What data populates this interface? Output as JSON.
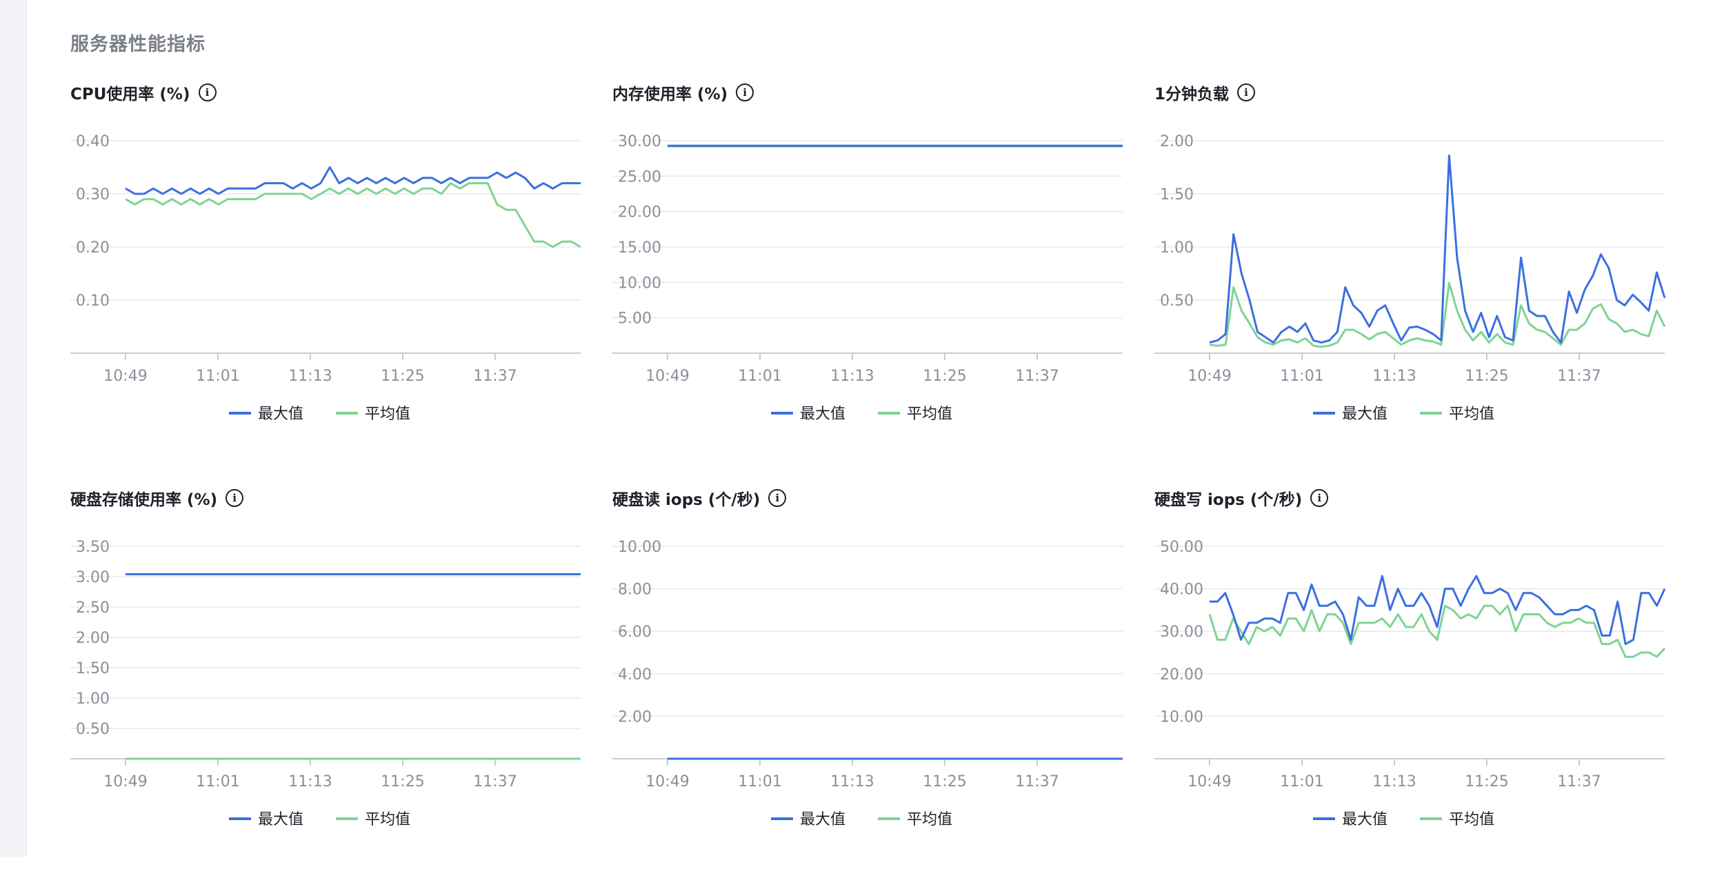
{
  "section_title": "服务器性能指标",
  "colors": {
    "max": "#3b6fe0",
    "avg": "#7ed491"
  },
  "chart_data": [
    {
      "type": "line",
      "title": "CPU使用率 (%)",
      "x_ticks": [
        "10:49",
        "11:01",
        "11:13",
        "11:25",
        "11:37"
      ],
      "y_ticks": [
        "0.40",
        "0.30",
        "0.20",
        "0.10"
      ],
      "ylim": [
        0,
        0.4
      ],
      "legend": [
        "最大值",
        "平均值"
      ],
      "series": [
        {
          "name": "最大值",
          "values": [
            0.31,
            0.3,
            0.3,
            0.31,
            0.3,
            0.31,
            0.3,
            0.31,
            0.3,
            0.31,
            0.3,
            0.31,
            0.31,
            0.31,
            0.31,
            0.32,
            0.32,
            0.32,
            0.31,
            0.32,
            0.31,
            0.32,
            0.35,
            0.32,
            0.33,
            0.32,
            0.33,
            0.32,
            0.33,
            0.32,
            0.33,
            0.32,
            0.33,
            0.33,
            0.32,
            0.33,
            0.32,
            0.33,
            0.33,
            0.33,
            0.34,
            0.33,
            0.34,
            0.33,
            0.31,
            0.32,
            0.31,
            0.32,
            0.32,
            0.32
          ]
        },
        {
          "name": "平均值",
          "values": [
            0.29,
            0.28,
            0.29,
            0.29,
            0.28,
            0.29,
            0.28,
            0.29,
            0.28,
            0.29,
            0.28,
            0.29,
            0.29,
            0.29,
            0.29,
            0.3,
            0.3,
            0.3,
            0.3,
            0.3,
            0.29,
            0.3,
            0.31,
            0.3,
            0.31,
            0.3,
            0.31,
            0.3,
            0.31,
            0.3,
            0.31,
            0.3,
            0.31,
            0.31,
            0.3,
            0.32,
            0.31,
            0.32,
            0.32,
            0.32,
            0.28,
            0.27,
            0.27,
            0.24,
            0.21,
            0.21,
            0.2,
            0.21,
            0.21,
            0.2
          ]
        }
      ]
    },
    {
      "type": "line",
      "title": "内存使用率 (%)",
      "x_ticks": [
        "10:49",
        "11:01",
        "11:13",
        "11:25",
        "11:37"
      ],
      "y_ticks": [
        "30.00",
        "25.00",
        "20.00",
        "15.00",
        "10.00",
        "5.00"
      ],
      "ylim": [
        0,
        30
      ],
      "legend": [
        "最大值",
        "平均值"
      ],
      "series": [
        {
          "name": "最大值",
          "values": [
            29.3,
            29.3,
            29.3,
            29.3,
            29.3,
            29.3,
            29.3,
            29.3,
            29.3,
            29.3,
            29.3,
            29.3,
            29.3,
            29.3,
            29.3,
            29.3,
            29.3,
            29.3,
            29.3,
            29.3,
            29.3,
            29.3,
            29.3,
            29.3,
            29.3,
            29.3,
            29.3,
            29.3,
            29.3,
            29.3,
            29.3,
            29.3,
            29.3,
            29.3,
            29.3,
            29.3,
            29.3,
            29.3,
            29.3,
            29.3,
            29.3,
            29.3,
            29.3,
            29.3,
            29.3,
            29.3,
            29.3,
            29.3,
            29.3,
            29.3
          ]
        },
        {
          "name": "平均值",
          "values": [
            29.2,
            29.2,
            29.2,
            29.2,
            29.2,
            29.2,
            29.2,
            29.2,
            29.2,
            29.2,
            29.2,
            29.2,
            29.2,
            29.2,
            29.2,
            29.2,
            29.2,
            29.2,
            29.2,
            29.2,
            29.2,
            29.2,
            29.2,
            29.2,
            29.2,
            29.2,
            29.2,
            29.2,
            29.2,
            29.2,
            29.2,
            29.2,
            29.2,
            29.2,
            29.2,
            29.2,
            29.2,
            29.2,
            29.2,
            29.2,
            29.2,
            29.2,
            29.2,
            29.2,
            29.2,
            29.2,
            29.2,
            29.2,
            29.2,
            29.2
          ]
        }
      ]
    },
    {
      "type": "line",
      "title": "1分钟负载",
      "x_ticks": [
        "10:49",
        "11:01",
        "11:13",
        "11:25",
        "11:37"
      ],
      "y_ticks": [
        "2.00",
        "1.50",
        "1.00",
        "0.50"
      ],
      "ylim": [
        0,
        2
      ],
      "legend": [
        "最大值",
        "平均值"
      ],
      "series": [
        {
          "name": "最大值",
          "values": [
            0.1,
            0.12,
            0.18,
            1.12,
            0.75,
            0.5,
            0.2,
            0.15,
            0.1,
            0.2,
            0.25,
            0.2,
            0.28,
            0.12,
            0.1,
            0.12,
            0.2,
            0.62,
            0.45,
            0.38,
            0.25,
            0.4,
            0.45,
            0.28,
            0.12,
            0.24,
            0.25,
            0.22,
            0.18,
            0.12,
            1.86,
            0.9,
            0.4,
            0.2,
            0.38,
            0.15,
            0.35,
            0.15,
            0.12,
            0.9,
            0.4,
            0.35,
            0.35,
            0.2,
            0.1,
            0.58,
            0.38,
            0.6,
            0.73,
            0.93,
            0.8,
            0.5,
            0.45,
            0.55,
            0.48,
            0.4,
            0.76,
            0.52
          ]
        },
        {
          "name": "平均值",
          "values": [
            0.08,
            0.07,
            0.08,
            0.62,
            0.4,
            0.28,
            0.15,
            0.1,
            0.08,
            0.12,
            0.13,
            0.1,
            0.14,
            0.07,
            0.06,
            0.07,
            0.1,
            0.22,
            0.22,
            0.18,
            0.13,
            0.18,
            0.2,
            0.14,
            0.08,
            0.12,
            0.14,
            0.12,
            0.11,
            0.08,
            0.66,
            0.4,
            0.22,
            0.12,
            0.2,
            0.1,
            0.18,
            0.1,
            0.08,
            0.45,
            0.28,
            0.22,
            0.2,
            0.14,
            0.08,
            0.22,
            0.22,
            0.28,
            0.42,
            0.46,
            0.32,
            0.28,
            0.2,
            0.22,
            0.18,
            0.16,
            0.4,
            0.25
          ]
        }
      ]
    },
    {
      "type": "line",
      "title": "硬盘存储使用率 (%)",
      "x_ticks": [
        "10:49",
        "11:01",
        "11:13",
        "11:25",
        "11:37"
      ],
      "y_ticks": [
        "3.50",
        "3.00",
        "2.50",
        "2.00",
        "1.50",
        "1.00",
        "0.50"
      ],
      "ylim": [
        0,
        3.5
      ],
      "legend": [
        "最大值",
        "平均值"
      ],
      "series": [
        {
          "name": "最大值",
          "values": [
            3.04,
            3.04,
            3.04,
            3.04,
            3.04,
            3.04,
            3.04,
            3.04,
            3.04,
            3.04,
            3.04,
            3.04,
            3.04,
            3.04,
            3.04,
            3.04,
            3.04,
            3.04,
            3.04,
            3.04
          ]
        },
        {
          "name": "平均值",
          "values": [
            0,
            0,
            0,
            0,
            0,
            0,
            0,
            0,
            0,
            0,
            0,
            0,
            0,
            0,
            0,
            0,
            0,
            0,
            0,
            0
          ]
        }
      ]
    },
    {
      "type": "line",
      "title": "硬盘读 iops (个/秒)",
      "x_ticks": [
        "10:49",
        "11:01",
        "11:13",
        "11:25",
        "11:37"
      ],
      "y_ticks": [
        "10.00",
        "8.00",
        "6.00",
        "4.00",
        "2.00"
      ],
      "ylim": [
        0,
        10
      ],
      "legend": [
        "最大值",
        "平均值"
      ],
      "series": [
        {
          "name": "最大值",
          "values": [
            0,
            0,
            0,
            0,
            0,
            0,
            0,
            0,
            0,
            0,
            0,
            0,
            0,
            0,
            0,
            0,
            0,
            0,
            0,
            0
          ]
        },
        {
          "name": "平均值",
          "values": [
            0,
            0,
            0,
            0,
            0,
            0,
            0,
            0,
            0,
            0,
            0,
            0,
            0,
            0,
            0,
            0,
            0,
            0,
            0,
            0
          ]
        }
      ]
    },
    {
      "type": "line",
      "title": "硬盘写 iops (个/秒)",
      "x_ticks": [
        "10:49",
        "11:01",
        "11:13",
        "11:25",
        "11:37"
      ],
      "y_ticks": [
        "50.00",
        "40.00",
        "30.00",
        "20.00",
        "10.00"
      ],
      "ylim": [
        0,
        50
      ],
      "legend": [
        "最大值",
        "平均值"
      ],
      "series": [
        {
          "name": "最大值",
          "values": [
            37,
            37,
            39,
            34,
            28,
            32,
            32,
            33,
            33,
            32,
            39,
            39,
            35,
            41,
            36,
            36,
            37,
            34,
            28,
            38,
            36,
            36,
            43,
            35,
            40,
            36,
            36,
            39,
            36,
            31,
            40,
            40,
            36,
            40,
            43,
            39,
            39,
            40,
            39,
            35,
            39,
            39,
            38,
            36,
            34,
            34,
            35,
            35,
            36,
            35,
            29,
            29,
            37,
            27,
            28,
            39,
            39,
            36,
            40
          ]
        },
        {
          "name": "平均值",
          "values": [
            34,
            28,
            28,
            33,
            30,
            27,
            31,
            30,
            31,
            29,
            33,
            33,
            30,
            35,
            30,
            34,
            34,
            32,
            27,
            32,
            32,
            32,
            33,
            31,
            34,
            31,
            31,
            34,
            30,
            28,
            36,
            35,
            33,
            34,
            33,
            36,
            36,
            34,
            36,
            30,
            34,
            34,
            34,
            32,
            31,
            32,
            32,
            33,
            32,
            32,
            27,
            27,
            28,
            24,
            24,
            25,
            25,
            24,
            26
          ]
        }
      ]
    }
  ]
}
